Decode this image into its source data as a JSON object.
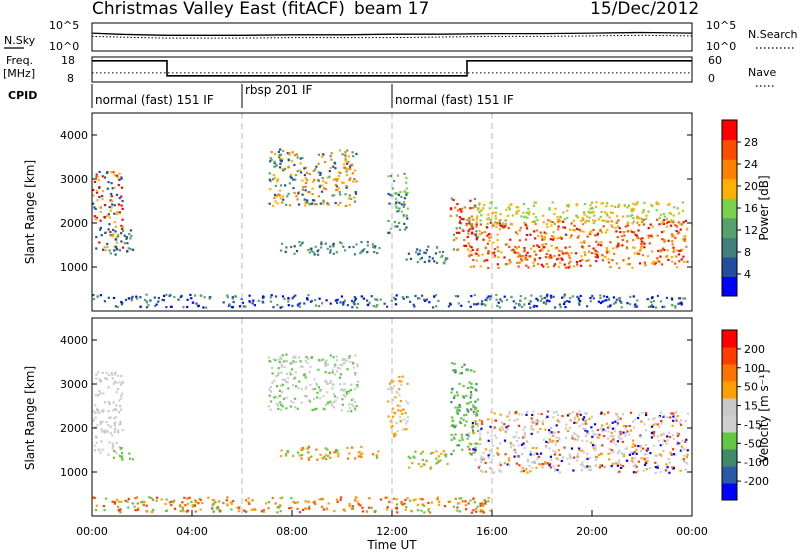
{
  "header": {
    "title": "Christmas Valley East (fitACF)",
    "beam": "beam 17",
    "date": "15/Dec/2012"
  },
  "labels": {
    "nsky": "N.Sky",
    "nsearch": "N.Search",
    "freq_a": "Freq.",
    "freq_b": "[MHz]",
    "nave": "Nave",
    "cpid": "CPID"
  },
  "cpid_segments": [
    {
      "label": "normal (fast) 151 IF",
      "start_h": 0,
      "end_h": 6
    },
    {
      "label": "rbsp 201 IF",
      "start_h": 6,
      "end_h": 12
    },
    {
      "label": "normal (fast) 151 IF",
      "start_h": 12,
      "end_h": 24
    }
  ],
  "colors": {
    "power": [
      "#0000ff",
      "#234e9e",
      "#3f7f7f",
      "#56a26a",
      "#7bd34b",
      "#ffb000",
      "#ff7f00",
      "#ff4b00",
      "#ff0000"
    ],
    "velocity": [
      "#0000ff",
      "#2a5aa8",
      "#3f8a6a",
      "#62c844",
      "#cfcfcf",
      "#c8c8c8",
      "#ffa000",
      "#ff7300",
      "#ff3c00",
      "#ff0000"
    ]
  },
  "chart_data": [
    {
      "type": "line",
      "name": "noise-panel",
      "ylabel_left": "N.Sky",
      "ylabel_right": "N.Search",
      "yticks_left": [
        "10^5",
        "10^0"
      ],
      "yticks_right": [
        "10^5",
        "10^0"
      ],
      "x": [
        0,
        1,
        2,
        3,
        4,
        6,
        8,
        10,
        12,
        14,
        16,
        18,
        20,
        22,
        24
      ],
      "series": [
        {
          "values": [
            3.2,
            3.0,
            2.9,
            2.8,
            2.8,
            2.8,
            2.9,
            2.9,
            3.0,
            3.0,
            3.1,
            3.1,
            3.2,
            3.3,
            3.2
          ]
        },
        {
          "values": [
            2.6,
            2.5,
            2.4,
            2.3,
            2.3,
            2.3,
            2.4,
            2.4,
            2.4,
            2.5,
            2.6,
            2.6,
            2.7,
            2.8,
            2.7
          ]
        }
      ]
    },
    {
      "type": "line",
      "name": "freq-panel",
      "ylabel_left": "Freq. [MHz]",
      "ylabel_right": "Nave",
      "yticks_left": [
        "18",
        "8"
      ],
      "yticks_right": [
        "60",
        "0"
      ],
      "ylim": [
        8,
        18
      ],
      "frequency_steps": [
        {
          "from_h": 0,
          "to_h": 3,
          "mhz": 16.5
        },
        {
          "from_h": 3,
          "to_h": 15,
          "mhz": 10.5
        },
        {
          "from_h": 15,
          "to_h": 24,
          "mhz": 16.5
        }
      ],
      "nave_level": 22
    },
    {
      "type": "heatmap",
      "name": "power-panel",
      "ylabel": "Slant Range [km]",
      "ylim": [
        0,
        4500
      ],
      "yticks": [
        1000,
        2000,
        3000,
        4000
      ],
      "xlim_h": [
        0,
        24
      ],
      "colorbar_label": "Power [dB]",
      "colorbar_ticks": [
        "28",
        "24",
        "20",
        "16",
        "12",
        "8",
        "4"
      ],
      "regions": [
        {
          "t0": 0.0,
          "t1": 1.2,
          "r0": 1400,
          "r1": 3200,
          "c": [
            1,
            5,
            8
          ]
        },
        {
          "t0": 0.6,
          "t1": 1.6,
          "r0": 1300,
          "r1": 1900,
          "c": [
            1,
            3
          ]
        },
        {
          "t0": 7.0,
          "t1": 10.6,
          "r0": 2400,
          "r1": 3700,
          "c": [
            1,
            3,
            5,
            6
          ]
        },
        {
          "t0": 7.5,
          "t1": 11.5,
          "r0": 1300,
          "r1": 1600,
          "c": [
            1,
            2,
            3
          ]
        },
        {
          "t0": 11.8,
          "t1": 12.6,
          "r0": 1800,
          "r1": 3200,
          "c": [
            1,
            3,
            4
          ]
        },
        {
          "t0": 12.5,
          "t1": 14.2,
          "r0": 1100,
          "r1": 1500,
          "c": [
            1,
            2,
            3
          ]
        },
        {
          "t0": 14.3,
          "t1": 15.4,
          "r0": 1400,
          "r1": 2600,
          "c": [
            3,
            6,
            8
          ]
        },
        {
          "t0": 15.0,
          "t1": 23.8,
          "r0": 1000,
          "r1": 2100,
          "c": [
            5,
            6,
            7,
            8
          ]
        },
        {
          "t0": 15.3,
          "t1": 23.6,
          "r0": 2000,
          "r1": 2500,
          "c": [
            4,
            5
          ]
        },
        {
          "t0": 0.0,
          "t1": 24.0,
          "r0": 100,
          "r1": 400,
          "c": [
            0,
            1,
            3
          ]
        }
      ]
    },
    {
      "type": "heatmap",
      "name": "velocity-panel",
      "ylabel": "Slant Range [km]",
      "ylim": [
        0,
        4500
      ],
      "yticks": [
        1000,
        2000,
        3000,
        4000
      ],
      "xlim_h": [
        0,
        24
      ],
      "xticks": [
        "00:00",
        "04:00",
        "08:00",
        "12:00",
        "16:00",
        "20:00",
        "00:00"
      ],
      "xlabel": "Time UT",
      "colorbar_label": "Velocity [m s⁻¹]",
      "colorbar_ticks": [
        "200",
        "100",
        "50",
        "15",
        "-15",
        "-50",
        "-100",
        "-200"
      ],
      "regions": [
        {
          "t0": 0.0,
          "t1": 1.2,
          "r0": 1400,
          "r1": 3300,
          "c": [
            4,
            5
          ]
        },
        {
          "t0": 0.8,
          "t1": 1.6,
          "r0": 1300,
          "r1": 1600,
          "c": [
            3
          ]
        },
        {
          "t0": 7.0,
          "t1": 10.6,
          "r0": 2400,
          "r1": 3700,
          "c": [
            4,
            5,
            3
          ]
        },
        {
          "t0": 7.5,
          "t1": 11.5,
          "r0": 1300,
          "r1": 1600,
          "c": [
            3,
            6,
            7
          ]
        },
        {
          "t0": 11.8,
          "t1": 12.6,
          "r0": 1800,
          "r1": 3200,
          "c": [
            4,
            6
          ]
        },
        {
          "t0": 12.5,
          "t1": 14.2,
          "r0": 1100,
          "r1": 1500,
          "c": [
            6,
            3
          ]
        },
        {
          "t0": 14.3,
          "t1": 15.4,
          "r0": 1400,
          "r1": 3500,
          "c": [
            3,
            3,
            2
          ]
        },
        {
          "t0": 15.0,
          "t1": 23.8,
          "r0": 1000,
          "r1": 2400,
          "c": [
            4,
            5,
            4,
            6,
            0,
            8
          ]
        },
        {
          "t0": 0.0,
          "t1": 16.0,
          "r0": 100,
          "r1": 450,
          "c": [
            6,
            7,
            3,
            8
          ]
        }
      ]
    }
  ]
}
